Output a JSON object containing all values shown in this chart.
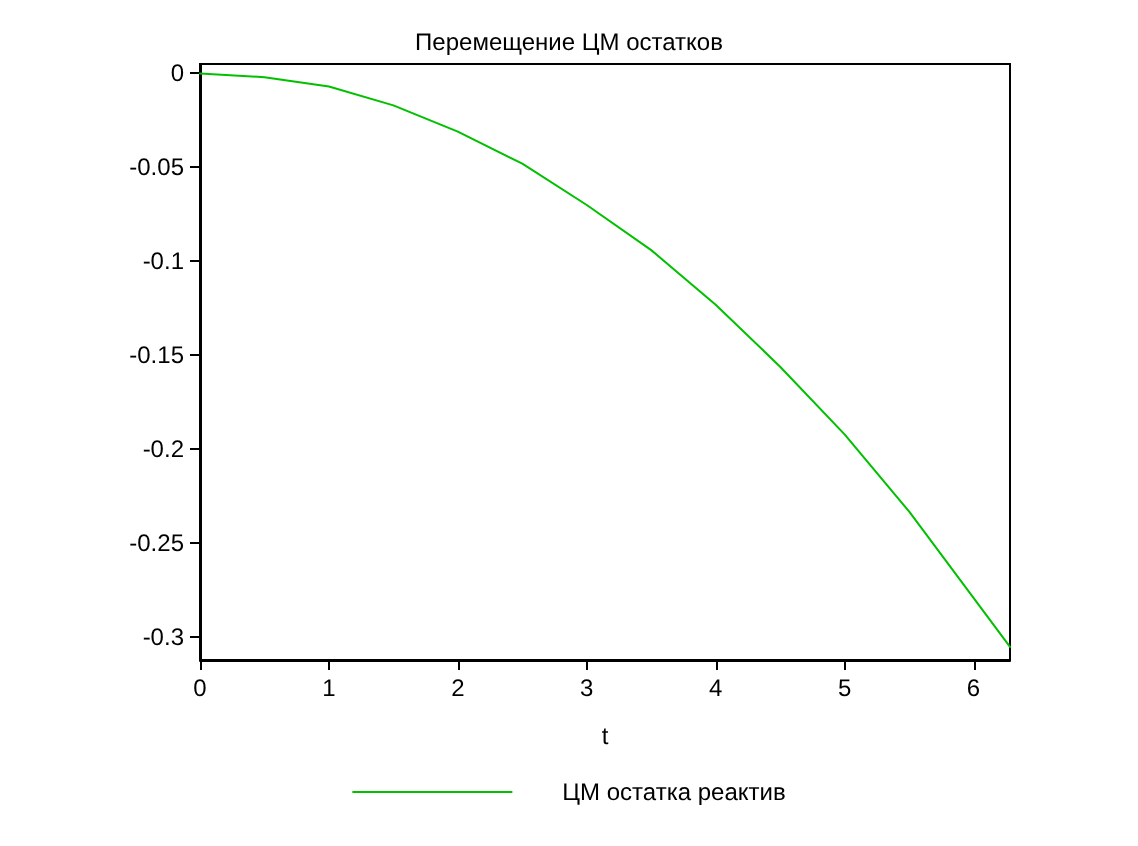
{
  "chart_data": {
    "type": "line",
    "title": "Перемещение ЦМ остатков",
    "xlabel": "t",
    "x": [
      0,
      0.5,
      1,
      1.5,
      2,
      2.5,
      3,
      3.5,
      4,
      4.5,
      5,
      5.5,
      6,
      6.283
    ],
    "series": [
      {
        "name": "ЦМ остатка реактив",
        "color": "#00c000",
        "values": [
          0,
          -0.002,
          -0.007,
          -0.017,
          -0.031,
          -0.048,
          -0.07,
          -0.094,
          -0.123,
          -0.156,
          -0.192,
          -0.233,
          -0.279,
          -0.305
        ]
      }
    ],
    "xlim": [
      0,
      6.283
    ],
    "ylim": [
      -0.312,
      0.005
    ],
    "xticks": [
      0,
      1,
      2,
      3,
      4,
      5,
      6
    ],
    "yticks": [
      0,
      -0.05,
      -0.1,
      -0.15,
      -0.2,
      -0.25,
      -0.3
    ],
    "grid": false,
    "legend": "bottom",
    "marker": "none",
    "line_style": "solid"
  }
}
